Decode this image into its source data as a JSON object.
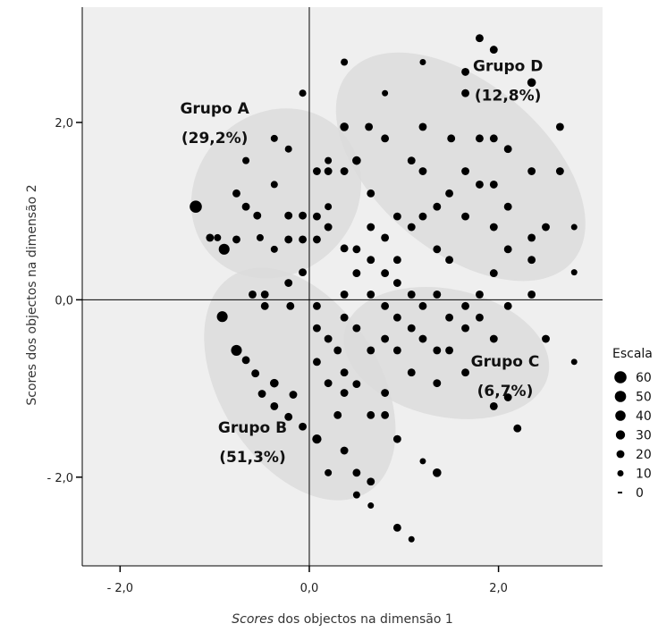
{
  "chart_data": {
    "type": "scatter",
    "xlabel_italic": "Scores",
    "xlabel_rest": " dos objectos na dimensão 1",
    "ylabel": "Scores dos objectos na dimensão 2",
    "xlim": [
      -2.4,
      3.1
    ],
    "ylim": [
      -3.0,
      3.3
    ],
    "x_ticks": [
      {
        "value": -2.0,
        "label": "- 2,0"
      },
      {
        "value": 0.0,
        "label": "0,0"
      },
      {
        "value": 2.0,
        "label": "2,0"
      }
    ],
    "y_ticks": [
      {
        "value": 2.0,
        "label": "2,0"
      },
      {
        "value": 0.0,
        "label": "0,0"
      },
      {
        "value": -2.0,
        "label": "- 2,0"
      }
    ],
    "reference_lines": {
      "x": 0.0,
      "y": 0.0
    },
    "groups": [
      {
        "name": "Grupo A",
        "pct": "(29,2%)",
        "cx": -0.35,
        "cy": 1.2,
        "rx": 0.95,
        "ry": 0.9,
        "angle": 45,
        "label_x": -1.0,
        "label_y": 2.1
      },
      {
        "name": "Grupo B",
        "pct": "(51,3%)",
        "cx": -0.1,
        "cy": -0.95,
        "rx": 1.35,
        "ry": 0.9,
        "angle": -58,
        "label_x": -0.6,
        "label_y": -1.5
      },
      {
        "name": "Grupo C",
        "pct": "(6,7%)",
        "cx": 1.45,
        "cy": -0.6,
        "rx": 1.1,
        "ry": 0.72,
        "angle": -12,
        "label_x": 2.07,
        "label_y": -0.75
      },
      {
        "name": "Grupo D",
        "pct": "(12,8%)",
        "cx": 1.6,
        "cy": 1.5,
        "rx": 1.55,
        "ry": 0.95,
        "angle": -40,
        "label_x": 2.1,
        "label_y": 2.58
      }
    ],
    "legend": {
      "title": "Escala",
      "position": "right",
      "entries": [
        {
          "label": "60",
          "size": 60
        },
        {
          "label": "50",
          "size": 50
        },
        {
          "label": "40",
          "size": 40
        },
        {
          "label": "30",
          "size": 30
        },
        {
          "label": "20",
          "size": 20
        },
        {
          "label": "10",
          "size": 10
        },
        {
          "label": "0",
          "size": 0
        }
      ]
    },
    "points": [
      {
        "x": -1.2,
        "y": 1.05,
        "s": 60
      },
      {
        "x": -0.9,
        "y": 0.57,
        "s": 45
      },
      {
        "x": -0.92,
        "y": -0.19,
        "s": 45
      },
      {
        "x": -0.77,
        "y": -0.57,
        "s": 45
      },
      {
        "x": 0.08,
        "y": -1.57,
        "s": 30
      },
      {
        "x": -1.05,
        "y": 0.7,
        "s": 20
      },
      {
        "x": -0.77,
        "y": 1.2,
        "s": 20
      },
      {
        "x": -0.77,
        "y": 0.68,
        "s": 20
      },
      {
        "x": -0.67,
        "y": 1.05,
        "s": 20
      },
      {
        "x": -0.6,
        "y": 0.06,
        "s": 20
      },
      {
        "x": -0.55,
        "y": 0.95,
        "s": 20
      },
      {
        "x": -0.47,
        "y": 0.06,
        "s": 20
      },
      {
        "x": -0.47,
        "y": -0.07,
        "s": 20
      },
      {
        "x": -0.67,
        "y": -0.68,
        "s": 20
      },
      {
        "x": -0.57,
        "y": -0.83,
        "s": 20
      },
      {
        "x": -0.5,
        "y": -1.06,
        "s": 20
      },
      {
        "x": -0.37,
        "y": -0.94,
        "s": 25
      },
      {
        "x": -0.37,
        "y": -1.2,
        "s": 20
      },
      {
        "x": -0.22,
        "y": -1.32,
        "s": 20
      },
      {
        "x": -0.17,
        "y": -1.07,
        "s": 20
      },
      {
        "x": -0.07,
        "y": -1.43,
        "s": 20
      },
      {
        "x": -0.22,
        "y": 0.95,
        "s": 20
      },
      {
        "x": -0.22,
        "y": 0.68,
        "s": 20
      },
      {
        "x": -0.22,
        "y": 0.19,
        "s": 20
      },
      {
        "x": -0.2,
        "y": -0.07,
        "s": 20
      },
      {
        "x": -0.07,
        "y": 0.95,
        "s": 20
      },
      {
        "x": -0.07,
        "y": 0.68,
        "s": 20
      },
      {
        "x": -0.07,
        "y": 0.31,
        "s": 20
      },
      {
        "x": 0.08,
        "y": 1.45,
        "s": 20
      },
      {
        "x": 0.08,
        "y": 0.94,
        "s": 20
      },
      {
        "x": 0.08,
        "y": 0.68,
        "s": 20
      },
      {
        "x": 0.2,
        "y": 1.45,
        "s": 20
      },
      {
        "x": 0.2,
        "y": 0.82,
        "s": 20
      },
      {
        "x": 0.08,
        "y": -0.07,
        "s": 20
      },
      {
        "x": 0.08,
        "y": -0.32,
        "s": 20
      },
      {
        "x": 0.08,
        "y": -0.7,
        "s": 20
      },
      {
        "x": 0.2,
        "y": -0.44,
        "s": 20
      },
      {
        "x": 0.2,
        "y": -0.94,
        "s": 20
      },
      {
        "x": 0.3,
        "y": -0.57,
        "s": 20
      },
      {
        "x": 0.3,
        "y": -1.3,
        "s": 20
      },
      {
        "x": 0.37,
        "y": 1.45,
        "s": 20
      },
      {
        "x": 0.37,
        "y": 0.58,
        "s": 20
      },
      {
        "x": 0.37,
        "y": 0.06,
        "s": 20
      },
      {
        "x": 0.37,
        "y": -0.2,
        "s": 20
      },
      {
        "x": 0.37,
        "y": -0.82,
        "s": 20
      },
      {
        "x": 0.37,
        "y": -1.05,
        "s": 20
      },
      {
        "x": 0.37,
        "y": -1.7,
        "s": 20
      },
      {
        "x": 0.5,
        "y": 1.57,
        "s": 25
      },
      {
        "x": 0.5,
        "y": 0.57,
        "s": 20
      },
      {
        "x": 0.5,
        "y": 0.3,
        "s": 20
      },
      {
        "x": 0.5,
        "y": -0.32,
        "s": 20
      },
      {
        "x": 0.5,
        "y": -0.95,
        "s": 20
      },
      {
        "x": 0.5,
        "y": -1.95,
        "s": 20
      },
      {
        "x": 0.65,
        "y": 1.2,
        "s": 20
      },
      {
        "x": 0.65,
        "y": 0.82,
        "s": 20
      },
      {
        "x": 0.65,
        "y": 0.45,
        "s": 20
      },
      {
        "x": 0.65,
        "y": 0.06,
        "s": 20
      },
      {
        "x": 0.65,
        "y": -0.57,
        "s": 20
      },
      {
        "x": 0.65,
        "y": -1.3,
        "s": 20
      },
      {
        "x": 0.65,
        "y": -2.05,
        "s": 20
      },
      {
        "x": 0.37,
        "y": 1.95,
        "s": 25
      },
      {
        "x": 0.63,
        "y": 1.95,
        "s": 20
      },
      {
        "x": 0.8,
        "y": 1.82,
        "s": 20
      },
      {
        "x": 0.8,
        "y": 0.7,
        "s": 20
      },
      {
        "x": 0.8,
        "y": 0.3,
        "s": 20
      },
      {
        "x": 0.8,
        "y": -0.07,
        "s": 20
      },
      {
        "x": 0.8,
        "y": -0.44,
        "s": 20
      },
      {
        "x": 0.8,
        "y": -1.05,
        "s": 20
      },
      {
        "x": 0.8,
        "y": -1.3,
        "s": 20
      },
      {
        "x": 0.93,
        "y": 0.94,
        "s": 20
      },
      {
        "x": 0.93,
        "y": 0.45,
        "s": 20
      },
      {
        "x": 0.93,
        "y": 0.19,
        "s": 20
      },
      {
        "x": 0.93,
        "y": -0.2,
        "s": 20
      },
      {
        "x": 0.93,
        "y": -0.57,
        "s": 20
      },
      {
        "x": 0.93,
        "y": -1.57,
        "s": 20
      },
      {
        "x": 0.93,
        "y": -2.57,
        "s": 20
      },
      {
        "x": 1.08,
        "y": 1.57,
        "s": 20
      },
      {
        "x": 1.08,
        "y": 0.82,
        "s": 20
      },
      {
        "x": 1.08,
        "y": 0.06,
        "s": 20
      },
      {
        "x": 1.08,
        "y": -0.32,
        "s": 20
      },
      {
        "x": 1.08,
        "y": -0.82,
        "s": 20
      },
      {
        "x": 1.2,
        "y": 1.95,
        "s": 20
      },
      {
        "x": 1.2,
        "y": 1.45,
        "s": 20
      },
      {
        "x": 1.2,
        "y": 0.94,
        "s": 20
      },
      {
        "x": 1.2,
        "y": -0.07,
        "s": 20
      },
      {
        "x": 1.2,
        "y": -0.44,
        "s": 20
      },
      {
        "x": 1.35,
        "y": 1.05,
        "s": 20
      },
      {
        "x": 1.35,
        "y": 0.57,
        "s": 20
      },
      {
        "x": 1.35,
        "y": 0.06,
        "s": 20
      },
      {
        "x": 1.35,
        "y": -0.57,
        "s": 20
      },
      {
        "x": 1.35,
        "y": -0.94,
        "s": 20
      },
      {
        "x": 1.35,
        "y": -1.95,
        "s": 25
      },
      {
        "x": 1.48,
        "y": 1.2,
        "s": 20
      },
      {
        "x": 1.48,
        "y": 0.45,
        "s": 20
      },
      {
        "x": 1.48,
        "y": -0.2,
        "s": 20
      },
      {
        "x": 1.48,
        "y": -0.57,
        "s": 20
      },
      {
        "x": 1.5,
        "y": 1.82,
        "s": 20
      },
      {
        "x": 1.65,
        "y": 2.33,
        "s": 20
      },
      {
        "x": 1.65,
        "y": 2.57,
        "s": 20
      },
      {
        "x": 1.65,
        "y": 1.45,
        "s": 20
      },
      {
        "x": 1.65,
        "y": 0.94,
        "s": 20
      },
      {
        "x": 1.65,
        "y": -0.07,
        "s": 20
      },
      {
        "x": 1.65,
        "y": -0.32,
        "s": 20
      },
      {
        "x": 1.65,
        "y": -0.82,
        "s": 20
      },
      {
        "x": 1.8,
        "y": 2.95,
        "s": 20
      },
      {
        "x": 1.8,
        "y": 1.82,
        "s": 20
      },
      {
        "x": 1.8,
        "y": 1.3,
        "s": 20
      },
      {
        "x": 1.8,
        "y": 0.06,
        "s": 20
      },
      {
        "x": 1.8,
        "y": -0.2,
        "s": 20
      },
      {
        "x": 1.95,
        "y": 2.82,
        "s": 20
      },
      {
        "x": 1.95,
        "y": 1.82,
        "s": 20
      },
      {
        "x": 1.95,
        "y": 1.3,
        "s": 20
      },
      {
        "x": 1.95,
        "y": 0.82,
        "s": 20
      },
      {
        "x": 1.95,
        "y": 0.3,
        "s": 20
      },
      {
        "x": 1.95,
        "y": -0.44,
        "s": 20
      },
      {
        "x": 1.95,
        "y": -1.2,
        "s": 20
      },
      {
        "x": 2.1,
        "y": 1.7,
        "s": 20
      },
      {
        "x": 2.1,
        "y": 1.05,
        "s": 20
      },
      {
        "x": 2.1,
        "y": 0.57,
        "s": 20
      },
      {
        "x": 2.1,
        "y": -0.07,
        "s": 20
      },
      {
        "x": 2.1,
        "y": -1.1,
        "s": 20
      },
      {
        "x": 2.2,
        "y": -1.45,
        "s": 20
      },
      {
        "x": 2.35,
        "y": 2.45,
        "s": 25
      },
      {
        "x": 2.35,
        "y": 1.45,
        "s": 20
      },
      {
        "x": 2.35,
        "y": 0.7,
        "s": 20
      },
      {
        "x": 2.35,
        "y": 0.45,
        "s": 20
      },
      {
        "x": 2.35,
        "y": 0.06,
        "s": 20
      },
      {
        "x": 2.5,
        "y": 0.82,
        "s": 20
      },
      {
        "x": 2.5,
        "y": -0.44,
        "s": 20
      },
      {
        "x": 2.65,
        "y": 1.95,
        "s": 20
      },
      {
        "x": 2.65,
        "y": 1.45,
        "s": 20
      },
      {
        "x": 2.8,
        "y": 0.82,
        "s": 10
      },
      {
        "x": 2.8,
        "y": 0.31,
        "s": 10
      },
      {
        "x": 2.8,
        "y": -0.7,
        "s": 10
      },
      {
        "x": 1.2,
        "y": 2.68,
        "s": 10
      },
      {
        "x": 0.37,
        "y": 2.68,
        "s": 15
      },
      {
        "x": -0.07,
        "y": 2.33,
        "s": 15
      },
      {
        "x": -0.37,
        "y": 1.82,
        "s": 15
      },
      {
        "x": -0.67,
        "y": 1.57,
        "s": 15
      },
      {
        "x": 0.8,
        "y": 2.33,
        "s": 10
      },
      {
        "x": 1.2,
        "y": -1.82,
        "s": 10
      },
      {
        "x": 1.08,
        "y": -2.7,
        "s": 10
      },
      {
        "x": 0.65,
        "y": -2.32,
        "s": 10
      },
      {
        "x": 0.5,
        "y": -2.2,
        "s": 15
      },
      {
        "x": 0.2,
        "y": -1.95,
        "s": 15
      },
      {
        "x": -0.22,
        "y": 1.7,
        "s": 15
      },
      {
        "x": 0.2,
        "y": 1.57,
        "s": 15
      },
      {
        "x": 0.2,
        "y": 1.05,
        "s": 15
      },
      {
        "x": -0.37,
        "y": 1.3,
        "s": 15
      },
      {
        "x": -0.37,
        "y": 0.57,
        "s": 15
      },
      {
        "x": -0.52,
        "y": 0.7,
        "s": 15
      },
      {
        "x": -0.97,
        "y": 0.7,
        "s": 15
      }
    ]
  }
}
